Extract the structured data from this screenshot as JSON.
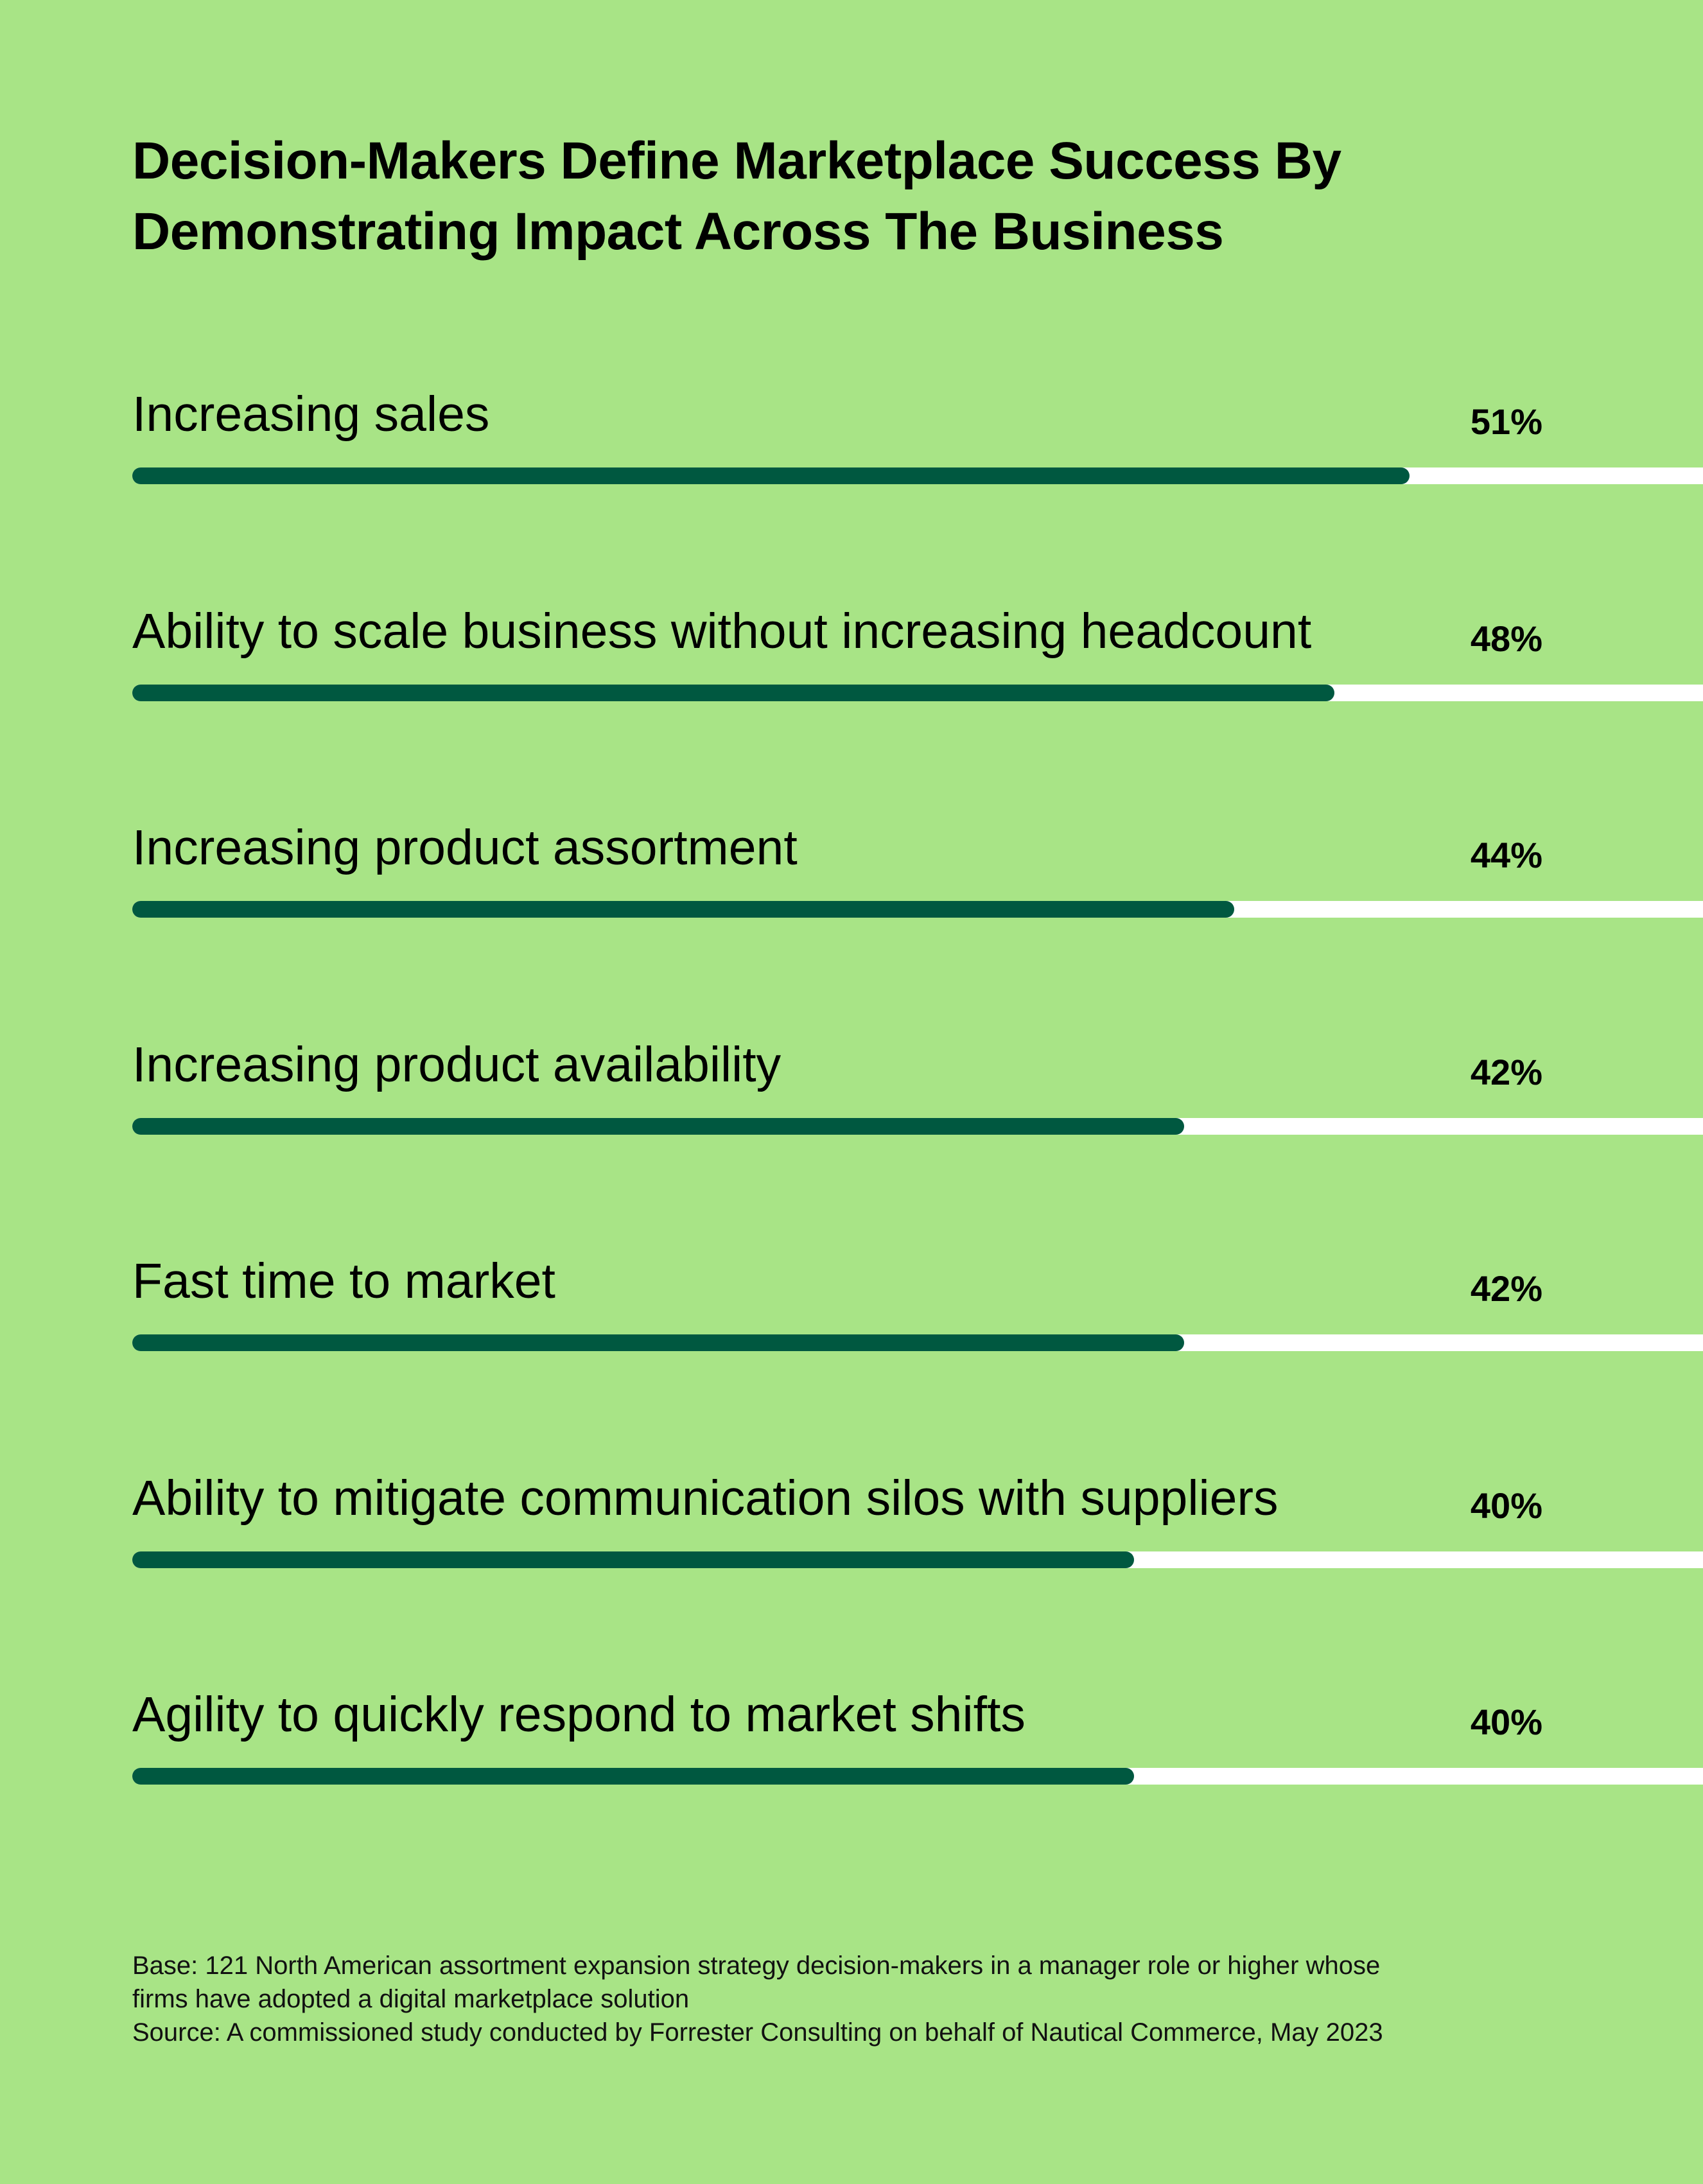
{
  "chart_data": {
    "type": "bar",
    "orientation": "horizontal",
    "title": [
      "Decision-Makers Define Marketplace Success By",
      "Demonstrating Impact Across The Business"
    ],
    "categories": [
      "Increasing sales",
      "Ability to scale business without increasing headcount",
      "Increasing product assortment",
      "Increasing product availability",
      "Fast time to market",
      "Ability to mitigate communication silos with suppliers",
      "Agility to quickly respond to market shifts"
    ],
    "values": [
      51,
      48,
      44,
      42,
      42,
      40,
      40
    ],
    "value_labels": [
      "51%",
      "48%",
      "44%",
      "42%",
      "42%",
      "40%",
      "40%"
    ],
    "unit": "%",
    "colors": {
      "background": "#a8e486",
      "bar": "#005840",
      "track": "#ffffff"
    },
    "footnote": [
      "Base: 121 North American assortment expansion strategy decision-makers in a manager role or higher whose",
      "firms have adopted a digital marketplace solution",
      "Source: A commissioned study conducted by Forrester Consulting on behalf of Nautical Commerce, May 2023"
    ]
  }
}
